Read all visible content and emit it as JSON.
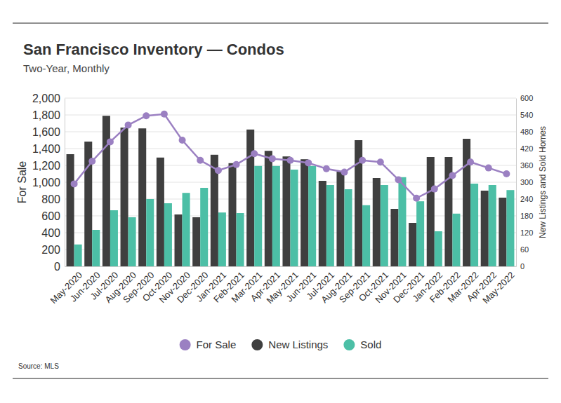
{
  "chart_data": {
    "type": "bar",
    "title": "San Francisco Inventory — Condos",
    "subtitle": "Two-Year, Monthly",
    "y_label": "For Sale",
    "y2_label": "New Listings and Sold Homes",
    "source": "Source: MLS",
    "categories": [
      "May-2020",
      "Jun-2020",
      "Jul-2020",
      "Aug-2020",
      "Sep-2020",
      "Oct-2020",
      "Nov-2020",
      "Dec-2020",
      "Jan-2021",
      "Feb-2021",
      "Mar-2021",
      "Apr-2021",
      "May-2021",
      "Jun-2021",
      "Jul-2021",
      "Aug-2021",
      "Sep-2021",
      "Oct-2021",
      "Nov-2021",
      "Dec-2021",
      "Jan-2022",
      "Feb-2022",
      "Mar-2022",
      "Apr-2022",
      "May-2022"
    ],
    "series": [
      {
        "name": "For Sale",
        "type": "line",
        "marker": "circle",
        "color": "#9b80c2",
        "values": [
          980,
          1250,
          1480,
          1680,
          1790,
          1810,
          1500,
          1260,
          1140,
          1210,
          1340,
          1280,
          1260,
          1230,
          1160,
          1120,
          1260,
          1240,
          1030,
          810,
          920,
          1080,
          1240,
          1170,
          1100
        ]
      },
      {
        "name": "New Listings",
        "type": "bar",
        "axis": "y2",
        "color": "#3f3f3f",
        "values": [
          400,
          445,
          537,
          495,
          492,
          388,
          185,
          175,
          398,
          368,
          488,
          412,
          392,
          382,
          305,
          338,
          450,
          315,
          205,
          155,
          390,
          390,
          455,
          270,
          245
        ]
      },
      {
        "name": "Sold",
        "type": "bar",
        "axis": "y2",
        "color": "#4cbfa6",
        "values": [
          78,
          130,
          200,
          175,
          240,
          225,
          262,
          280,
          192,
          190,
          358,
          358,
          345,
          358,
          290,
          275,
          218,
          290,
          318,
          232,
          125,
          188,
          295,
          290,
          272
        ]
      }
    ],
    "ylim": [
      0,
      2000
    ],
    "yticks": [
      0,
      200,
      400,
      600,
      800,
      {
        "value": 1000,
        "label": "1,000"
      },
      {
        "value": 1200,
        "label": "1,200"
      },
      {
        "value": 1400,
        "label": "1,400"
      },
      {
        "value": 1600,
        "label": "1,600"
      },
      {
        "value": 1800,
        "label": "1,800"
      },
      {
        "value": 2000,
        "label": "2,000"
      }
    ],
    "y2lim": [
      0,
      600
    ],
    "y2ticks": [
      0,
      60,
      120,
      180,
      240,
      300,
      360,
      420,
      480,
      540,
      600
    ],
    "grid": true,
    "legend": "bottom"
  }
}
